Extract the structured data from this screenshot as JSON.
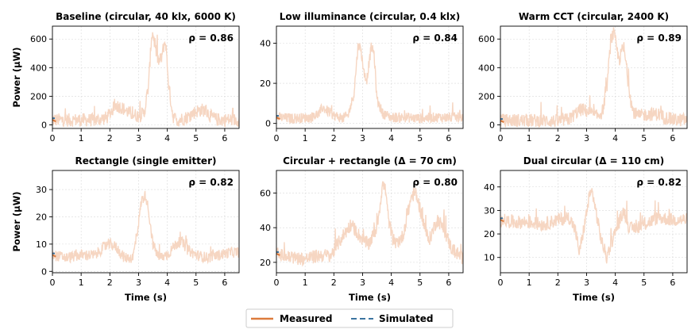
{
  "colors": {
    "measured": "#dd7b3c",
    "simulated": "#3b74a0",
    "measured_light": "#f6d6c2"
  },
  "legend": {
    "measured_label": "Measured",
    "simulated_label": "Simulated"
  },
  "chart_data": [
    {
      "type": "line",
      "title": "Baseline (circular, 40 klx, 6000 K)",
      "annotation": "ρ = 0.86",
      "xlabel": "",
      "ylabel": "Power (µW)",
      "xlim": [
        0,
        6.5
      ],
      "ylim": [
        -25,
        690
      ],
      "xticks": [
        0,
        1,
        2,
        3,
        4,
        5,
        6
      ],
      "yticks": [
        0,
        200,
        400,
        600
      ],
      "keypoints": [
        [
          0,
          35
        ],
        [
          0.5,
          33
        ],
        [
          1.0,
          35
        ],
        [
          1.5,
          33
        ],
        [
          1.9,
          50
        ],
        [
          2.1,
          110
        ],
        [
          2.2,
          138
        ],
        [
          2.4,
          122
        ],
        [
          2.7,
          80
        ],
        [
          3.0,
          62
        ],
        [
          3.2,
          85
        ],
        [
          3.35,
          280
        ],
        [
          3.45,
          620
        ],
        [
          3.5,
          640
        ],
        [
          3.6,
          520
        ],
        [
          3.7,
          440
        ],
        [
          3.8,
          470
        ],
        [
          3.9,
          575
        ],
        [
          3.95,
          560
        ],
        [
          4.05,
          270
        ],
        [
          4.2,
          60
        ],
        [
          4.35,
          30
        ],
        [
          4.7,
          55
        ],
        [
          5.0,
          95
        ],
        [
          5.2,
          105
        ],
        [
          5.35,
          100
        ],
        [
          5.5,
          60
        ],
        [
          5.7,
          38
        ],
        [
          6.0,
          35
        ],
        [
          6.5,
          35
        ]
      ],
      "noise": 4,
      "series": [
        {
          "name": "Measured"
        },
        {
          "name": "Simulated"
        }
      ]
    },
    {
      "type": "line",
      "title": "Low illuminance (circular, 0.4 klx)",
      "annotation": "ρ = 0.84",
      "xlabel": "",
      "ylabel": "",
      "xlim": [
        0,
        6.5
      ],
      "ylim": [
        -2.5,
        48.5
      ],
      "xticks": [
        0,
        1,
        2,
        3,
        4,
        5,
        6
      ],
      "yticks": [
        0,
        20,
        40
      ],
      "keypoints": [
        [
          0,
          3
        ],
        [
          0.6,
          2.5
        ],
        [
          1.2,
          3
        ],
        [
          1.5,
          5
        ],
        [
          1.6,
          8
        ],
        [
          1.8,
          6
        ],
        [
          2.0,
          4
        ],
        [
          2.3,
          2.5
        ],
        [
          2.5,
          4
        ],
        [
          2.7,
          15
        ],
        [
          2.85,
          40
        ],
        [
          2.95,
          36
        ],
        [
          3.05,
          25
        ],
        [
          3.15,
          22
        ],
        [
          3.3,
          38
        ],
        [
          3.4,
          35
        ],
        [
          3.5,
          12
        ],
        [
          3.7,
          5
        ],
        [
          4.0,
          3
        ],
        [
          4.5,
          3
        ],
        [
          5.0,
          2.5
        ],
        [
          5.5,
          3
        ],
        [
          6.0,
          3
        ],
        [
          6.5,
          3
        ]
      ],
      "noise": 3,
      "series": [
        {
          "name": "Measured"
        },
        {
          "name": "Simulated"
        }
      ]
    },
    {
      "type": "line",
      "title": "Warm CCT (circular, 2400 K)",
      "annotation": "ρ = 0.89",
      "xlabel": "",
      "ylabel": "",
      "xlim": [
        0,
        6.5
      ],
      "ylim": [
        -25,
        690
      ],
      "xticks": [
        0,
        1,
        2,
        3,
        4,
        5,
        6
      ],
      "yticks": [
        0,
        200,
        400,
        600
      ],
      "keypoints": [
        [
          0,
          30
        ],
        [
          0.5,
          32
        ],
        [
          1.0,
          30
        ],
        [
          1.5,
          30
        ],
        [
          2.0,
          25
        ],
        [
          2.4,
          40
        ],
        [
          2.7,
          95
        ],
        [
          2.85,
          110
        ],
        [
          3.1,
          85
        ],
        [
          3.35,
          60
        ],
        [
          3.55,
          90
        ],
        [
          3.7,
          250
        ],
        [
          3.85,
          600
        ],
        [
          3.95,
          640
        ],
        [
          4.1,
          480
        ],
        [
          4.15,
          460
        ],
        [
          4.25,
          530
        ],
        [
          4.3,
          540
        ],
        [
          4.45,
          300
        ],
        [
          4.6,
          100
        ],
        [
          4.8,
          60
        ],
        [
          5.0,
          70
        ],
        [
          5.3,
          75
        ],
        [
          5.5,
          75
        ],
        [
          5.7,
          55
        ],
        [
          6.0,
          35
        ],
        [
          6.5,
          35
        ]
      ],
      "noise": 4,
      "series": [
        {
          "name": "Measured"
        },
        {
          "name": "Simulated"
        }
      ]
    },
    {
      "type": "line",
      "title": "Rectangle (single emitter)",
      "annotation": "ρ = 0.82",
      "xlabel": "Time (s)",
      "ylabel": "Power (µW)",
      "xlim": [
        0,
        6.5
      ],
      "ylim": [
        -0.5,
        37
      ],
      "xticks": [
        0,
        1,
        2,
        3,
        4,
        5,
        6
      ],
      "yticks": [
        0,
        10,
        20,
        30
      ],
      "keypoints": [
        [
          0,
          6
        ],
        [
          0.5,
          5
        ],
        [
          1.0,
          6
        ],
        [
          1.5,
          6
        ],
        [
          1.8,
          9
        ],
        [
          2.0,
          10
        ],
        [
          2.2,
          9
        ],
        [
          2.5,
          5
        ],
        [
          2.8,
          5
        ],
        [
          2.95,
          14
        ],
        [
          3.1,
          26
        ],
        [
          3.25,
          28
        ],
        [
          3.35,
          22
        ],
        [
          3.5,
          10
        ],
        [
          3.7,
          5
        ],
        [
          4.0,
          6
        ],
        [
          4.3,
          10
        ],
        [
          4.5,
          11
        ],
        [
          4.7,
          8
        ],
        [
          5.0,
          6
        ],
        [
          5.4,
          5
        ],
        [
          5.8,
          6
        ],
        [
          6.2,
          7
        ],
        [
          6.5,
          7
        ]
      ],
      "noise": 3.2,
      "series": [
        {
          "name": "Measured"
        },
        {
          "name": "Simulated"
        }
      ]
    },
    {
      "type": "line",
      "title": "Circular + rectangle (Δ = 70 cm)",
      "annotation": "ρ = 0.80",
      "xlabel": "Time (s)",
      "ylabel": "",
      "xlim": [
        0,
        6.5
      ],
      "ylim": [
        14,
        73
      ],
      "xticks": [
        0,
        1,
        2,
        3,
        4,
        5,
        6
      ],
      "yticks": [
        20,
        40,
        60
      ],
      "keypoints": [
        [
          0,
          25
        ],
        [
          0.4,
          23
        ],
        [
          1.0,
          22
        ],
        [
          1.5,
          24
        ],
        [
          1.9,
          24
        ],
        [
          2.3,
          35
        ],
        [
          2.6,
          42
        ],
        [
          2.9,
          35
        ],
        [
          3.2,
          30
        ],
        [
          3.5,
          40
        ],
        [
          3.7,
          65
        ],
        [
          3.8,
          62
        ],
        [
          3.9,
          45
        ],
        [
          4.1,
          30
        ],
        [
          4.4,
          35
        ],
        [
          4.7,
          58
        ],
        [
          4.85,
          60
        ],
        [
          5.05,
          48
        ],
        [
          5.3,
          32
        ],
        [
          5.6,
          45
        ],
        [
          5.8,
          40
        ],
        [
          6.1,
          28
        ],
        [
          6.5,
          22
        ]
      ],
      "noise": 4,
      "series": [
        {
          "name": "Measured"
        },
        {
          "name": "Simulated"
        }
      ]
    },
    {
      "type": "line",
      "title": "Dual circular (Δ = 110 cm)",
      "annotation": "ρ = 0.82",
      "xlabel": "Time (s)",
      "ylabel": "",
      "xlim": [
        0,
        6.5
      ],
      "ylim": [
        3.5,
        47
      ],
      "xticks": [
        0,
        1,
        2,
        3,
        4,
        5,
        6
      ],
      "yticks": [
        10,
        20,
        30,
        40
      ],
      "keypoints": [
        [
          0,
          26
        ],
        [
          0.5,
          25
        ],
        [
          1.0,
          25
        ],
        [
          1.5,
          24
        ],
        [
          2.0,
          26
        ],
        [
          2.4,
          27
        ],
        [
          2.6,
          22
        ],
        [
          2.75,
          12
        ],
        [
          2.9,
          22
        ],
        [
          3.1,
          36
        ],
        [
          3.2,
          38
        ],
        [
          3.35,
          28
        ],
        [
          3.5,
          18
        ],
        [
          3.7,
          10
        ],
        [
          3.85,
          16
        ],
        [
          4.1,
          24
        ],
        [
          4.3,
          30
        ],
        [
          4.5,
          22
        ],
        [
          5.0,
          24
        ],
        [
          5.5,
          27
        ],
        [
          6.0,
          26
        ],
        [
          6.5,
          26
        ]
      ],
      "noise": 4,
      "series": [
        {
          "name": "Measured"
        },
        {
          "name": "Simulated"
        }
      ]
    }
  ]
}
